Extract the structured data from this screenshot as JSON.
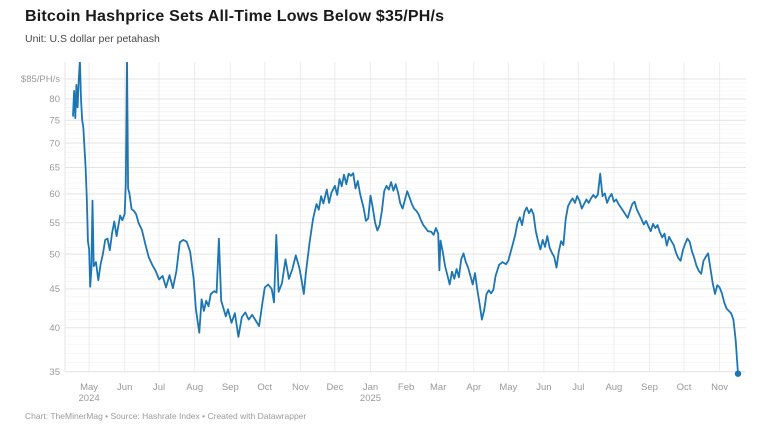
{
  "header": {
    "title": "Bitcoin Hashprice Sets All-Time Lows Below $35/PH/s",
    "subtitle": "Unit: U.S dollar per petahash"
  },
  "footer": {
    "credit": "Chart: TheMinerMag • Source: Hashrate Index • Created with Datawrapper"
  },
  "chart_data": {
    "type": "line",
    "title": "Bitcoin Hashprice Sets All-Time Lows Below $35/PH/s",
    "ylabel": "U.S dollar per petahash",
    "y_scale": "log",
    "ylim": [
      35,
      85
    ],
    "grid": true,
    "line_color": "#1d76b4",
    "axis_label_color": "#999999",
    "y_ticks": [
      {
        "v": 85,
        "label": "$85/PH/s"
      },
      {
        "v": 80,
        "label": "80"
      },
      {
        "v": 75,
        "label": "75"
      },
      {
        "v": 70,
        "label": "70"
      },
      {
        "v": 65,
        "label": "65"
      },
      {
        "v": 60,
        "label": "60"
      },
      {
        "v": 55,
        "label": "55"
      },
      {
        "v": 50,
        "label": "50"
      },
      {
        "v": 45,
        "label": "45"
      },
      {
        "v": 40,
        "label": "40"
      },
      {
        "v": 35,
        "label": "35"
      }
    ],
    "x_ticks": [
      {
        "date": "2024-05-01",
        "label": "May",
        "sub": "2024"
      },
      {
        "date": "2024-06-01",
        "label": "Jun",
        "sub": ""
      },
      {
        "date": "2024-07-01",
        "label": "Jul",
        "sub": ""
      },
      {
        "date": "2024-08-01",
        "label": "Aug",
        "sub": ""
      },
      {
        "date": "2024-09-01",
        "label": "Sep",
        "sub": ""
      },
      {
        "date": "2024-10-01",
        "label": "Oct",
        "sub": ""
      },
      {
        "date": "2024-11-01",
        "label": "Nov",
        "sub": ""
      },
      {
        "date": "2024-12-01",
        "label": "Dec",
        "sub": ""
      },
      {
        "date": "2025-01-01",
        "label": "Jan",
        "sub": "2025"
      },
      {
        "date": "2025-02-01",
        "label": "Feb",
        "sub": ""
      },
      {
        "date": "2025-03-01",
        "label": "Mar",
        "sub": ""
      },
      {
        "date": "2025-04-01",
        "label": "Apr",
        "sub": ""
      },
      {
        "date": "2025-05-01",
        "label": "May",
        "sub": ""
      },
      {
        "date": "2025-06-01",
        "label": "Jun",
        "sub": ""
      },
      {
        "date": "2025-07-01",
        "label": "Jul",
        "sub": ""
      },
      {
        "date": "2025-08-01",
        "label": "Aug",
        "sub": ""
      },
      {
        "date": "2025-09-01",
        "label": "Sep",
        "sub": ""
      },
      {
        "date": "2025-10-01",
        "label": "Oct",
        "sub": ""
      },
      {
        "date": "2025-11-01",
        "label": "Nov",
        "sub": ""
      }
    ],
    "series": [
      [
        "2024-04-17",
        76
      ],
      [
        "2024-04-18",
        82
      ],
      [
        "2024-04-19",
        75.5
      ],
      [
        "2024-04-20",
        83.5
      ],
      [
        "2024-04-21",
        78
      ],
      [
        "2024-04-22",
        84.5
      ],
      [
        "2024-04-23",
        90
      ],
      [
        "2024-04-24",
        80
      ],
      [
        "2024-04-25",
        75
      ],
      [
        "2024-04-26",
        73.5
      ],
      [
        "2024-04-28",
        65
      ],
      [
        "2024-04-29",
        59.2
      ],
      [
        "2024-04-30",
        52
      ],
      [
        "2024-05-01",
        50.8
      ],
      [
        "2024-05-02",
        45.3
      ],
      [
        "2024-05-03",
        47.8
      ],
      [
        "2024-05-04",
        58.8
      ],
      [
        "2024-05-05",
        48.2
      ],
      [
        "2024-05-07",
        48.8
      ],
      [
        "2024-05-09",
        46.2
      ],
      [
        "2024-05-11",
        48.5
      ],
      [
        "2024-05-13",
        50.0
      ],
      [
        "2024-05-15",
        52.2
      ],
      [
        "2024-05-17",
        52.4
      ],
      [
        "2024-05-19",
        50.6
      ],
      [
        "2024-05-21",
        53.2
      ],
      [
        "2024-05-23",
        55.2
      ],
      [
        "2024-05-25",
        52.8
      ],
      [
        "2024-05-28",
        56.2
      ],
      [
        "2024-05-30",
        55.4
      ],
      [
        "2024-06-01",
        56.5
      ],
      [
        "2024-06-02",
        62
      ],
      [
        "2024-06-03",
        91
      ],
      [
        "2024-06-04",
        61
      ],
      [
        "2024-06-05",
        60.2
      ],
      [
        "2024-06-07",
        57.3
      ],
      [
        "2024-06-09",
        57.0
      ],
      [
        "2024-06-11",
        56.4
      ],
      [
        "2024-06-13",
        55.0
      ],
      [
        "2024-06-16",
        53.8
      ],
      [
        "2024-06-19",
        51.5
      ],
      [
        "2024-06-22",
        49.5
      ],
      [
        "2024-06-25",
        48.4
      ],
      [
        "2024-06-28",
        47.5
      ],
      [
        "2024-07-01",
        46.3
      ],
      [
        "2024-07-04",
        46.8
      ],
      [
        "2024-07-07",
        45.2
      ],
      [
        "2024-07-10",
        46.9
      ],
      [
        "2024-07-13",
        45.1
      ],
      [
        "2024-07-16",
        47.5
      ],
      [
        "2024-07-19",
        51.8
      ],
      [
        "2024-07-22",
        52.2
      ],
      [
        "2024-07-25",
        51.9
      ],
      [
        "2024-07-28",
        50.4
      ],
      [
        "2024-07-31",
        46.5
      ],
      [
        "2024-08-02",
        42.3
      ],
      [
        "2024-08-05",
        39.4
      ],
      [
        "2024-08-07",
        43.6
      ],
      [
        "2024-08-09",
        42.1
      ],
      [
        "2024-08-11",
        43.4
      ],
      [
        "2024-08-13",
        42.7
      ],
      [
        "2024-08-15",
        44.3
      ],
      [
        "2024-08-18",
        44.7
      ],
      [
        "2024-08-20",
        44.5
      ],
      [
        "2024-08-22",
        52.4
      ],
      [
        "2024-08-24",
        43.4
      ],
      [
        "2024-08-26",
        42.4
      ],
      [
        "2024-08-28",
        41.4
      ],
      [
        "2024-08-30",
        42.3
      ],
      [
        "2024-09-02",
        40.6
      ],
      [
        "2024-09-05",
        41.8
      ],
      [
        "2024-09-08",
        38.9
      ],
      [
        "2024-09-11",
        41.3
      ],
      [
        "2024-09-14",
        41.9
      ],
      [
        "2024-09-17",
        41.0
      ],
      [
        "2024-09-20",
        41.6
      ],
      [
        "2024-09-23",
        40.9
      ],
      [
        "2024-09-26",
        40.2
      ],
      [
        "2024-09-29",
        43.2
      ],
      [
        "2024-10-01",
        45.2
      ],
      [
        "2024-10-04",
        45.6
      ],
      [
        "2024-10-07",
        45.0
      ],
      [
        "2024-10-09",
        43.2
      ],
      [
        "2024-10-11",
        53.0
      ],
      [
        "2024-10-13",
        44.6
      ],
      [
        "2024-10-16",
        45.8
      ],
      [
        "2024-10-19",
        49.2
      ],
      [
        "2024-10-22",
        46.4
      ],
      [
        "2024-10-25",
        47.8
      ],
      [
        "2024-10-28",
        49.8
      ],
      [
        "2024-10-31",
        48.0
      ],
      [
        "2024-11-02",
        46.2
      ],
      [
        "2024-11-04",
        44.3
      ],
      [
        "2024-11-06",
        47.5
      ],
      [
        "2024-11-09",
        51.8
      ],
      [
        "2024-11-12",
        55.6
      ],
      [
        "2024-11-15",
        58.2
      ],
      [
        "2024-11-17",
        57.2
      ],
      [
        "2024-11-19",
        59.6
      ],
      [
        "2024-11-21",
        58.3
      ],
      [
        "2024-11-24",
        60.8
      ],
      [
        "2024-11-26",
        58.4
      ],
      [
        "2024-11-28",
        60.2
      ],
      [
        "2024-12-01",
        61.5
      ],
      [
        "2024-12-03",
        59.8
      ],
      [
        "2024-12-05",
        62.8
      ],
      [
        "2024-12-07",
        61.4
      ],
      [
        "2024-12-09",
        63.6
      ],
      [
        "2024-12-11",
        61.8
      ],
      [
        "2024-12-13",
        63.8
      ],
      [
        "2024-12-15",
        63.4
      ],
      [
        "2024-12-17",
        63.9
      ],
      [
        "2024-12-19",
        61.0
      ],
      [
        "2024-12-21",
        62.4
      ],
      [
        "2024-12-23",
        60.0
      ],
      [
        "2024-12-26",
        57.5
      ],
      [
        "2024-12-28",
        55.3
      ],
      [
        "2024-12-30",
        55.7
      ],
      [
        "2025-01-01",
        59.7
      ],
      [
        "2025-01-03",
        57.5
      ],
      [
        "2025-01-05",
        55.0
      ],
      [
        "2025-01-07",
        53.7
      ],
      [
        "2025-01-09",
        54.6
      ],
      [
        "2025-01-11",
        57.0
      ],
      [
        "2025-01-13",
        60.5
      ],
      [
        "2025-01-15",
        61.5
      ],
      [
        "2025-01-17",
        60.8
      ],
      [
        "2025-01-19",
        62.2
      ],
      [
        "2025-01-21",
        60.6
      ],
      [
        "2025-01-23",
        61.8
      ],
      [
        "2025-01-25",
        60.3
      ],
      [
        "2025-01-27",
        58.3
      ],
      [
        "2025-01-29",
        57.4
      ],
      [
        "2025-01-31",
        58.9
      ],
      [
        "2025-02-02",
        60.5
      ],
      [
        "2025-02-04",
        59.4
      ],
      [
        "2025-02-06",
        58.2
      ],
      [
        "2025-02-08",
        57.4
      ],
      [
        "2025-02-10",
        57.0
      ],
      [
        "2025-02-12",
        56.4
      ],
      [
        "2025-02-14",
        55.4
      ],
      [
        "2025-02-16",
        54.6
      ],
      [
        "2025-02-18",
        54.1
      ],
      [
        "2025-02-20",
        53.6
      ],
      [
        "2025-02-23",
        53.5
      ],
      [
        "2025-02-25",
        53.0
      ],
      [
        "2025-02-27",
        54.1
      ],
      [
        "2025-03-01",
        53.2
      ],
      [
        "2025-03-02",
        47.6
      ],
      [
        "2025-03-03",
        52.1
      ],
      [
        "2025-03-05",
        50.3
      ],
      [
        "2025-03-07",
        48.2
      ],
      [
        "2025-03-09",
        46.9
      ],
      [
        "2025-03-11",
        45.6
      ],
      [
        "2025-03-13",
        47.4
      ],
      [
        "2025-03-15",
        46.4
      ],
      [
        "2025-03-17",
        47.8
      ],
      [
        "2025-03-19",
        46.6
      ],
      [
        "2025-03-21",
        49.2
      ],
      [
        "2025-03-23",
        50.1
      ],
      [
        "2025-03-25",
        48.8
      ],
      [
        "2025-03-27",
        48.0
      ],
      [
        "2025-03-29",
        46.8
      ],
      [
        "2025-03-31",
        45.6
      ],
      [
        "2025-04-02",
        47.2
      ],
      [
        "2025-04-04",
        44.9
      ],
      [
        "2025-04-06",
        43.0
      ],
      [
        "2025-04-08",
        41.0
      ],
      [
        "2025-04-10",
        42.2
      ],
      [
        "2025-04-12",
        44.3
      ],
      [
        "2025-04-14",
        44.8
      ],
      [
        "2025-04-16",
        44.4
      ],
      [
        "2025-04-18",
        44.9
      ],
      [
        "2025-04-20",
        46.8
      ],
      [
        "2025-04-23",
        48.4
      ],
      [
        "2025-04-26",
        48.8
      ],
      [
        "2025-04-29",
        48.5
      ],
      [
        "2025-05-01",
        49.0
      ],
      [
        "2025-05-03",
        50.3
      ],
      [
        "2025-05-05",
        51.6
      ],
      [
        "2025-05-07",
        53.0
      ],
      [
        "2025-05-09",
        55.0
      ],
      [
        "2025-05-11",
        55.9
      ],
      [
        "2025-05-13",
        54.6
      ],
      [
        "2025-05-15",
        56.8
      ],
      [
        "2025-05-17",
        57.6
      ],
      [
        "2025-05-19",
        56.6
      ],
      [
        "2025-05-21",
        57.3
      ],
      [
        "2025-05-23",
        56.4
      ],
      [
        "2025-05-25",
        53.6
      ],
      [
        "2025-05-27",
        52.0
      ],
      [
        "2025-05-29",
        50.7
      ],
      [
        "2025-05-31",
        52.2
      ],
      [
        "2025-06-02",
        51.1
      ],
      [
        "2025-06-04",
        52.8
      ],
      [
        "2025-06-06",
        51.0
      ],
      [
        "2025-06-08",
        50.2
      ],
      [
        "2025-06-10",
        49.6
      ],
      [
        "2025-06-12",
        48.0
      ],
      [
        "2025-06-14",
        50.4
      ],
      [
        "2025-06-16",
        52.0
      ],
      [
        "2025-06-18",
        51.4
      ],
      [
        "2025-06-20",
        55.6
      ],
      [
        "2025-06-22",
        57.8
      ],
      [
        "2025-06-24",
        58.6
      ],
      [
        "2025-06-26",
        59.2
      ],
      [
        "2025-06-28",
        58.4
      ],
      [
        "2025-06-30",
        59.6
      ],
      [
        "2025-07-02",
        58.8
      ],
      [
        "2025-07-04",
        57.4
      ],
      [
        "2025-07-06",
        58.2
      ],
      [
        "2025-07-08",
        59.0
      ],
      [
        "2025-07-10",
        58.4
      ],
      [
        "2025-07-12",
        59.2
      ],
      [
        "2025-07-14",
        59.8
      ],
      [
        "2025-07-16",
        59.3
      ],
      [
        "2025-07-18",
        59.9
      ],
      [
        "2025-07-20",
        63.8
      ],
      [
        "2025-07-22",
        59.6
      ],
      [
        "2025-07-24",
        60.1
      ],
      [
        "2025-07-26",
        58.4
      ],
      [
        "2025-07-28",
        59.4
      ],
      [
        "2025-07-30",
        60.0
      ],
      [
        "2025-08-01",
        58.6
      ],
      [
        "2025-08-03",
        59.0
      ],
      [
        "2025-08-05",
        58.2
      ],
      [
        "2025-08-07",
        57.6
      ],
      [
        "2025-08-09",
        57.0
      ],
      [
        "2025-08-11",
        56.4
      ],
      [
        "2025-08-13",
        55.8
      ],
      [
        "2025-08-15",
        57.0
      ],
      [
        "2025-08-17",
        58.2
      ],
      [
        "2025-08-19",
        58.6
      ],
      [
        "2025-08-21",
        57.2
      ],
      [
        "2025-08-23",
        56.4
      ],
      [
        "2025-08-25",
        55.6
      ],
      [
        "2025-08-27",
        54.7
      ],
      [
        "2025-08-29",
        55.3
      ],
      [
        "2025-08-31",
        54.4
      ],
      [
        "2025-09-02",
        53.6
      ],
      [
        "2025-09-04",
        54.8
      ],
      [
        "2025-09-06",
        54.1
      ],
      [
        "2025-09-08",
        54.6
      ],
      [
        "2025-09-10",
        53.4
      ],
      [
        "2025-09-12",
        52.6
      ],
      [
        "2025-09-14",
        53.2
      ],
      [
        "2025-09-16",
        51.3
      ],
      [
        "2025-09-18",
        52.7
      ],
      [
        "2025-09-20",
        52.0
      ],
      [
        "2025-09-22",
        51.4
      ],
      [
        "2025-09-24",
        50.2
      ],
      [
        "2025-09-26",
        49.4
      ],
      [
        "2025-09-28",
        49.0
      ],
      [
        "2025-09-30",
        50.6
      ],
      [
        "2025-10-02",
        51.6
      ],
      [
        "2025-10-04",
        52.4
      ],
      [
        "2025-10-06",
        51.9
      ],
      [
        "2025-10-08",
        50.4
      ],
      [
        "2025-10-10",
        49.4
      ],
      [
        "2025-10-12",
        48.2
      ],
      [
        "2025-10-14",
        47.5
      ],
      [
        "2025-10-16",
        47.1
      ],
      [
        "2025-10-18",
        49.0
      ],
      [
        "2025-10-20",
        49.6
      ],
      [
        "2025-10-22",
        50.1
      ],
      [
        "2025-10-24",
        47.9
      ],
      [
        "2025-10-26",
        45.8
      ],
      [
        "2025-10-28",
        44.3
      ],
      [
        "2025-10-30",
        45.5
      ],
      [
        "2025-11-01",
        45.2
      ],
      [
        "2025-11-03",
        44.4
      ],
      [
        "2025-11-05",
        43.2
      ],
      [
        "2025-11-07",
        42.4
      ],
      [
        "2025-11-09",
        42.1
      ],
      [
        "2025-11-11",
        41.8
      ],
      [
        "2025-11-13",
        41.0
      ],
      [
        "2025-11-15",
        38.5
      ],
      [
        "2025-11-17",
        34.8
      ]
    ]
  }
}
